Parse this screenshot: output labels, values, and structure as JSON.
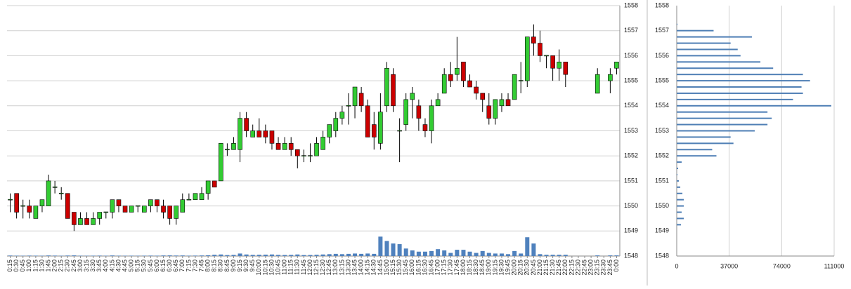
{
  "chart_data": [
    {
      "type": "candlestick",
      "categories": [
        "0:15",
        "0:30",
        "0:45",
        "1:00",
        "1:15",
        "1:30",
        "1:45",
        "2:00",
        "2:15",
        "2:30",
        "2:45",
        "3:00",
        "3:15",
        "3:30",
        "3:45",
        "4:00",
        "4:15",
        "4:30",
        "4:45",
        "5:00",
        "5:15",
        "5:30",
        "5:45",
        "6:00",
        "6:15",
        "6:30",
        "6:45",
        "7:00",
        "7:15",
        "7:30",
        "7:45",
        "8:00",
        "8:15",
        "8:30",
        "8:45",
        "9:00",
        "9:15",
        "9:30",
        "9:45",
        "10:00",
        "10:15",
        "10:30",
        "10:45",
        "11:00",
        "11:15",
        "11:30",
        "11:45",
        "12:00",
        "12:15",
        "12:30",
        "12:45",
        "13:00",
        "13:15",
        "13:30",
        "13:45",
        "14:00",
        "14:15",
        "14:30",
        "14:45",
        "15:00",
        "15:15",
        "15:30",
        "15:45",
        "16:00",
        "16:15",
        "16:30",
        "16:45",
        "17:00",
        "17:15",
        "17:30",
        "17:45",
        "18:00",
        "18:15",
        "18:30",
        "18:45",
        "19:00",
        "19:15",
        "19:30",
        "19:45",
        "20:00",
        "20:15",
        "20:30",
        "20:45",
        "21:00",
        "21:15",
        "21:30",
        "21:45",
        "22:00",
        "22:15",
        "22:30",
        "22:45",
        "23:00",
        "23:15",
        "23:30",
        "23:45",
        "0:00"
      ],
      "open": [
        1550.25,
        1550.5,
        1550,
        1550,
        1549.5,
        1550,
        1550,
        1550.75,
        1550.5,
        1550.5,
        1549.75,
        1549.25,
        1549.5,
        1549.25,
        1549.5,
        1549.75,
        1549.75,
        1550.25,
        1550,
        1549.75,
        1550,
        1549.75,
        1550,
        1550.25,
        1550,
        1550,
        1549.5,
        1549.75,
        1550.25,
        1550.25,
        1550.25,
        1550.5,
        1551,
        1551,
        1552.25,
        1552.25,
        1552.25,
        1553.5,
        1552.75,
        1553,
        1553,
        1553,
        1552.5,
        1552.25,
        1552.5,
        1552.25,
        1552,
        1552,
        1552,
        1552.25,
        1552.75,
        1553,
        1553.5,
        1554,
        1554,
        1554.5,
        1554,
        1553.25,
        1552.5,
        1554,
        1555.25,
        1553,
        1553.25,
        1554.25,
        1554,
        1553.25,
        1553,
        1554,
        1554.5,
        1555.25,
        1555.25,
        1555.75,
        1555,
        1554.75,
        1554.5,
        1554,
        1553.5,
        1554,
        1554.25,
        1554.25,
        1555,
        1555,
        1556.75,
        1556.5,
        1556,
        1556,
        1555.5,
        1555.75,
        null,
        null,
        null,
        null,
        1554.5,
        null,
        1555,
        1555.5
      ],
      "high": [
        1550.5,
        1550.5,
        1550.25,
        1550.25,
        1550,
        1550.25,
        1551.25,
        1551,
        1550.75,
        1550.5,
        1549.75,
        1549.75,
        1549.75,
        1549.75,
        1549.75,
        1549.75,
        1550.25,
        1550.25,
        1550,
        1550,
        1550,
        1550,
        1550.25,
        1550.25,
        1550.25,
        1550,
        1550,
        1550.5,
        1550.5,
        1550.5,
        1550.75,
        1551,
        1551,
        1552.5,
        1552.5,
        1552.75,
        1553.75,
        1553.75,
        1553.25,
        1553.5,
        1553.25,
        1553,
        1552.75,
        1552.75,
        1552.75,
        1552.25,
        1552.25,
        1552.5,
        1552.75,
        1553,
        1553.25,
        1553.75,
        1554,
        1554.5,
        1554.75,
        1554.75,
        1554.25,
        1553.75,
        1554.5,
        1555.75,
        1555.5,
        1553.5,
        1554.5,
        1554.75,
        1554.25,
        1553.5,
        1554.25,
        1554.5,
        1555.5,
        1555.75,
        1556.75,
        1555.75,
        1555.25,
        1555,
        1554.5,
        1554.5,
        1554.25,
        1554.5,
        1554.5,
        1555.25,
        1555.75,
        1556.75,
        1557.25,
        1557,
        1556,
        1556,
        1556.25,
        1555.75,
        null,
        null,
        null,
        null,
        1555.5,
        null,
        1555.5,
        1555.75
      ],
      "low": [
        1549.75,
        1549.5,
        1549.5,
        1549.5,
        1549.5,
        1549.75,
        1550,
        1550.5,
        1550.25,
        1549.5,
        1549,
        1549.25,
        1549.25,
        1549.25,
        1549.25,
        1549.5,
        1549.5,
        1549.75,
        1549.75,
        1549.75,
        1549.75,
        1549.75,
        1549.75,
        1549.75,
        1549.5,
        1549.25,
        1549.25,
        1549.75,
        1550.25,
        1550.25,
        1550.25,
        1550.25,
        1550.75,
        1551,
        1552,
        1552.25,
        1551.75,
        1552.75,
        1552.75,
        1552.75,
        1552.5,
        1552.25,
        1552.25,
        1552.25,
        1552,
        1551.5,
        1551.75,
        1551.75,
        1552,
        1552.25,
        1552.5,
        1552.75,
        1553.25,
        1553.25,
        1553.5,
        1553.75,
        1552.75,
        1552.25,
        1552.25,
        1553.75,
        1553.75,
        1551.75,
        1553,
        1553.5,
        1553,
        1552.75,
        1552.5,
        1554,
        1554.5,
        1554.75,
        1555,
        1554.75,
        1554.75,
        1554.25,
        1553.75,
        1553.25,
        1553.25,
        1553.75,
        1554,
        1554.25,
        1554.5,
        1554.75,
        1556,
        1555.75,
        1555.5,
        1555,
        1555,
        1554.75,
        null,
        null,
        null,
        null,
        1554.5,
        null,
        1554.5,
        1555.25
      ],
      "close": [
        1550.25,
        1549.75,
        1550,
        1549.75,
        1550,
        1550.25,
        1551,
        1550.75,
        1550.5,
        1549.5,
        1549.25,
        1549.5,
        1549.25,
        1549.5,
        1549.75,
        1549.75,
        1550.25,
        1550,
        1549.75,
        1550,
        1550,
        1550,
        1550.25,
        1550,
        1549.75,
        1549.5,
        1550,
        1550.25,
        1550.25,
        1550.5,
        1550.5,
        1551,
        1550.75,
        1552.5,
        1552.25,
        1552.5,
        1553.5,
        1553,
        1553,
        1552.75,
        1552.75,
        1552.5,
        1552.25,
        1552.5,
        1552.25,
        1552,
        1552,
        1552,
        1552.5,
        1552.75,
        1553.25,
        1553.5,
        1553.75,
        1554,
        1554.75,
        1554,
        1552.75,
        1552.75,
        1553.75,
        1555.5,
        1554,
        1553,
        1554.25,
        1554.5,
        1553.5,
        1553,
        1554,
        1554.25,
        1555.25,
        1555,
        1555.5,
        1555,
        1554.75,
        1554.5,
        1554.25,
        1553.5,
        1554.25,
        1554.25,
        1554,
        1555.25,
        1555,
        1556.75,
        1556.5,
        1556,
        1556,
        1555.5,
        1555.75,
        1555.25,
        null,
        null,
        null,
        null,
        1555.25,
        null,
        1555.25,
        1555.75
      ],
      "up_color": "#33cc33",
      "down_color": "#cc0000",
      "volume": {
        "color": "#4f81bd",
        "axis": "y2",
        "values": [
          800,
          600,
          500,
          700,
          600,
          500,
          900,
          700,
          500,
          800,
          1000,
          600,
          500,
          600,
          700,
          500,
          900,
          600,
          500,
          600,
          500,
          600,
          700,
          600,
          900,
          1000,
          800,
          900,
          600,
          700,
          900,
          1200,
          2000,
          2500,
          1500,
          1800,
          4000,
          2500,
          1800,
          2000,
          2200,
          2500,
          1800,
          1600,
          1800,
          2500,
          1500,
          1600,
          2000,
          2500,
          3000,
          3500,
          3000,
          3500,
          4000,
          3500,
          4000,
          3500,
          31000,
          24000,
          20000,
          19000,
          12000,
          9000,
          7000,
          7000,
          8000,
          11000,
          9000,
          5000,
          10000,
          10000,
          7000,
          5000,
          8000,
          5000,
          4000,
          4000,
          3000,
          8000,
          4000,
          30000,
          20000,
          3000,
          2000,
          2000,
          2000,
          2000,
          null,
          null,
          null,
          null,
          1000,
          null,
          1000,
          1000
        ]
      },
      "ylim": [
        1548,
        1558
      ],
      "yticks": [
        1548,
        1549,
        1550,
        1551,
        1552,
        1553,
        1554,
        1555,
        1556,
        1557,
        1558
      ],
      "y2lim": [
        0,
        400000
      ],
      "grid": true
    },
    {
      "type": "hbar",
      "categories": [
        1557.25,
        1557,
        1556.75,
        1556.5,
        1556.25,
        1556,
        1555.75,
        1555.5,
        1555.25,
        1555,
        1554.75,
        1554.5,
        1554.25,
        1554,
        1553.75,
        1553.5,
        1553.25,
        1553,
        1552.75,
        1552.5,
        1552.25,
        1552,
        1551.75,
        1551.5,
        1551.25,
        1551,
        1550.75,
        1550.5,
        1550.25,
        1550,
        1549.75,
        1549.5,
        1549.25
      ],
      "values": [
        500,
        26000,
        53000,
        38000,
        43000,
        45000,
        59000,
        68000,
        89000,
        94000,
        88000,
        89000,
        82000,
        109000,
        64000,
        67000,
        64000,
        55000,
        38000,
        40000,
        25000,
        28000,
        3500,
        1000,
        500,
        1500,
        2500,
        4000,
        5000,
        5000,
        3500,
        5000,
        3000
      ],
      "color": "#4f7fb5",
      "ylim": [
        1548,
        1558
      ],
      "yticks": [
        1548,
        1549,
        1550,
        1551,
        1552,
        1553,
        1554,
        1555,
        1556,
        1557,
        1558
      ],
      "xlim": [
        0,
        111000
      ],
      "xticks": [
        0,
        37000,
        74000,
        111000
      ],
      "grid": true
    }
  ]
}
